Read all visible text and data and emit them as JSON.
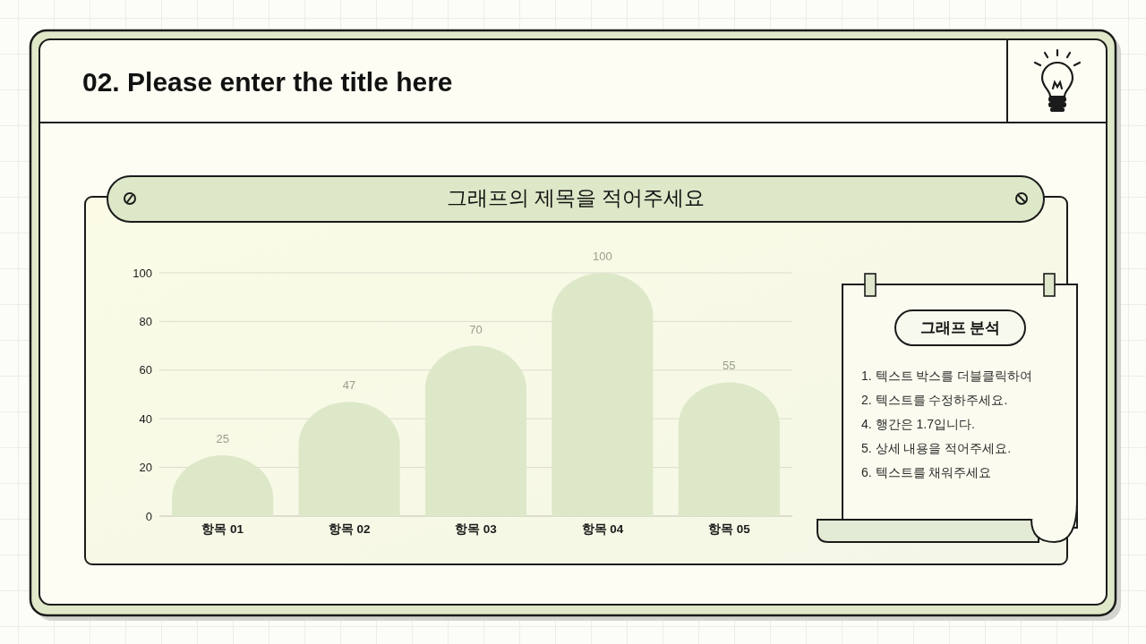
{
  "chart_data": {
    "type": "bar",
    "title": "02. Please enter the title here",
    "subtitle": "그래프의 제목을 적어주세요",
    "categories": [
      "항목 01",
      "항목 02",
      "항목 03",
      "항목 04",
      "항목 05"
    ],
    "values": [
      25,
      47,
      70,
      100,
      55
    ],
    "color": "#dde8c9",
    "ylim": [
      0,
      100
    ],
    "yticks": [
      0,
      20,
      40,
      60,
      80,
      100
    ],
    "grid": "y",
    "data_labels": true,
    "annotations": [
      "그래프 분석",
      "1. 텍스트 박스를 더블클릭하여",
      "2. 텍스트를 수정하주세요.",
      "4. 행간은 1.7입니다.",
      "5. 상세 내용을 적어주세요.",
      "6. 텍스트를 채워주세요"
    ]
  }
}
